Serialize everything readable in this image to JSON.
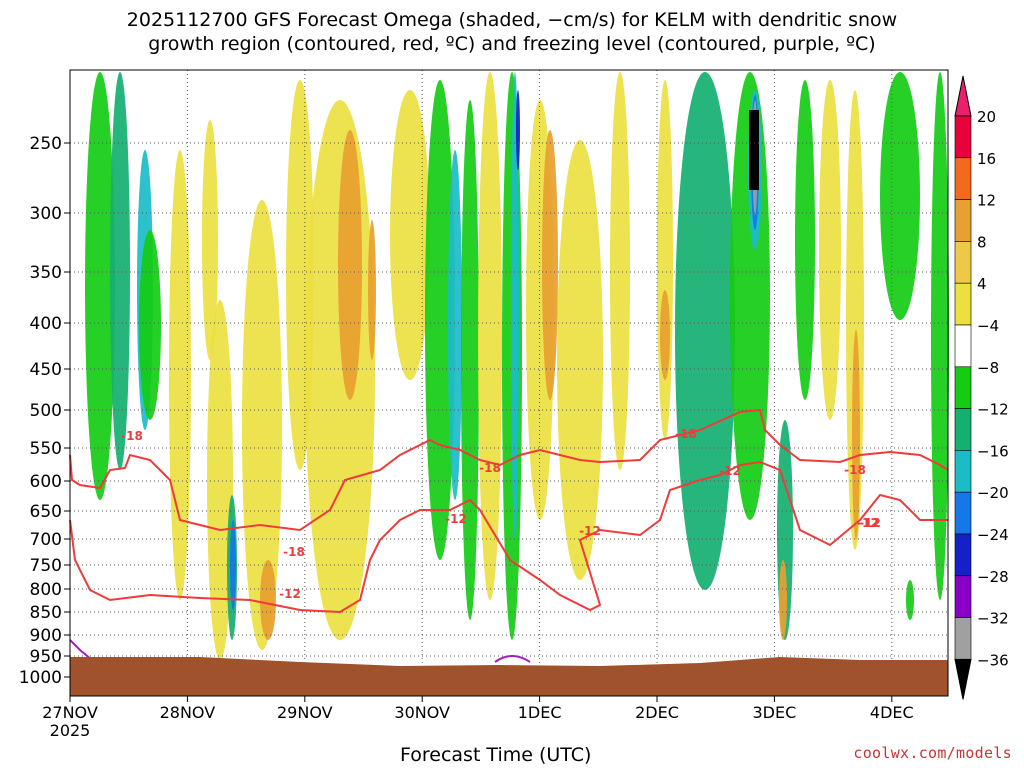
{
  "chart_data": {
    "type": "heatmap",
    "title_line1": "2025112700 GFS Forecast Omega (shaded, −cm/s) for KELM with dendritic snow",
    "title_line2": "growth region (contoured, red, ºC) and freezing level (contoured, purple, ºC)",
    "xlabel": "Forecast Time (UTC)",
    "x_ticks": [
      "27NOV",
      "28NOV",
      "29NOV",
      "30NOV",
      "1DEC",
      "2DEC",
      "3DEC",
      "4DEC"
    ],
    "x_year": "2025",
    "y_ticks": [
      "250",
      "300",
      "350",
      "400",
      "450",
      "500",
      "550",
      "600",
      "650",
      "700",
      "750",
      "800",
      "850",
      "900",
      "950",
      "1000"
    ],
    "colorbar_labels": [
      "20",
      "16",
      "12",
      "8",
      "4",
      "−4",
      "−8",
      "−12",
      "−16",
      "−20",
      "−24",
      "−28",
      "−32",
      "−36"
    ],
    "colorbar_colors": [
      "#e8003a",
      "#f36a1c",
      "#e8a030",
      "#f0c848",
      "#ece040",
      "#ffffff",
      "#14cc14",
      "#14b070",
      "#1abcc8",
      "#1478e8",
      "#1420c8",
      "#8a00c8",
      "#a0a0a0"
    ],
    "contour_labels": [
      "-18",
      "-18",
      "-12",
      "-18",
      "-12",
      "-12",
      "-18",
      "-12",
      "-12",
      "-18",
      "-12"
    ],
    "colors": {
      "dendritic": "#ee3b3b",
      "freezing": "#a020c0",
      "terrain": "#a0522d"
    }
  },
  "watermark": "coolwx.com/models"
}
